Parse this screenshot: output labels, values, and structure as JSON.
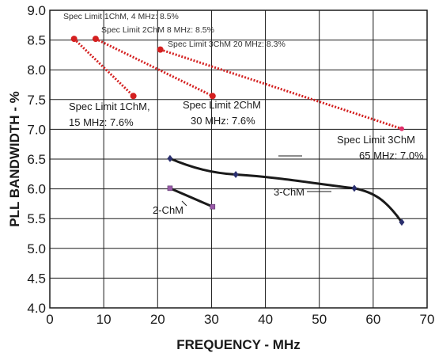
{
  "chart_data": {
    "type": "line",
    "xlabel": "FREQUENCY - MHz",
    "ylabel": "PLL BANDWIDTH - %",
    "xlim": [
      0,
      70
    ],
    "ylim": [
      4.0,
      9.0
    ],
    "xticks": [
      0,
      10,
      20,
      30,
      40,
      50,
      60,
      70
    ],
    "yticks": [
      "4.0",
      "4.5",
      "5.0",
      "5.5",
      "6.0",
      "6.5",
      "7.0",
      "7.5",
      "8.0",
      "8.5",
      "9.0"
    ],
    "grid": true,
    "colors": {
      "spec": "#d42020",
      "spec_marker_end": "#e0306a",
      "measured": "#1a1a1a",
      "marker_3chm": "#2a2f6e",
      "marker_2chm": "#9a5aa8"
    },
    "series": [
      {
        "name": "Spec Limit 1ChM",
        "style": "dotted",
        "points": [
          [
            4.5,
            8.52
          ],
          [
            15.5,
            7.56
          ]
        ]
      },
      {
        "name": "Spec Limit 2ChM",
        "style": "dotted",
        "points": [
          [
            8.5,
            8.52
          ],
          [
            30.2,
            7.56
          ]
        ]
      },
      {
        "name": "Spec Limit 3ChM",
        "style": "dotted",
        "points": [
          [
            20.5,
            8.34
          ],
          [
            65.3,
            7.01
          ]
        ]
      },
      {
        "name": "3-ChM",
        "style": "solid",
        "marker": "diamond",
        "points": [
          [
            22.3,
            6.51
          ],
          [
            34.5,
            6.24
          ],
          [
            56.5,
            6.01
          ],
          [
            65.3,
            5.44
          ]
        ]
      },
      {
        "name": "2-ChM",
        "style": "solid",
        "marker": "square",
        "points": [
          [
            22.3,
            6.01
          ],
          [
            30.2,
            5.7
          ]
        ]
      }
    ],
    "annotations": [
      {
        "key": "spec1-top",
        "text": "Spec Limit 1ChM, 4 MHz: 8.5%"
      },
      {
        "key": "spec2-top",
        "text": "Spec Limit 2ChM 8 MHz: 8.5%"
      },
      {
        "key": "spec3-top",
        "text": "Spec Limit 3ChM 20 MHz: 8.3%"
      },
      {
        "key": "spec1-bottom-1",
        "text": "Spec Limit 1ChM,"
      },
      {
        "key": "spec1-bottom-2",
        "text": "15 MHz: 7.6%"
      },
      {
        "key": "spec2-bottom-1",
        "text": "Spec Limit 2ChM"
      },
      {
        "key": "spec2-bottom-2",
        "text": "30 MHz: 7.6%"
      },
      {
        "key": "spec3-bottom-1",
        "text": "Spec Limit 3ChM"
      },
      {
        "key": "spec3-bottom-2",
        "text": "65 MHz: 7.0%"
      },
      {
        "key": "label-3chm",
        "text": "3-ChM"
      },
      {
        "key": "label-2chm",
        "text": "2-ChM"
      }
    ]
  }
}
